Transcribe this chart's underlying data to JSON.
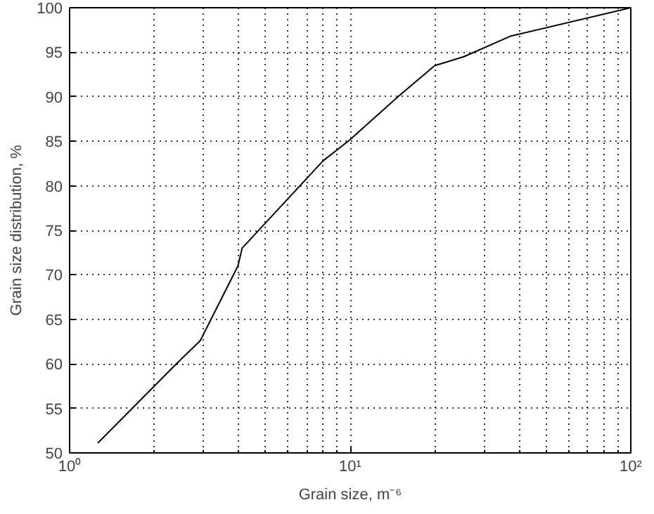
{
  "chart_data": {
    "type": "line",
    "xlabel": "Grain size, m⁻⁶",
    "ylabel": "Grain size distribution, %",
    "log": "x",
    "grid": true,
    "marker": "none",
    "line_style": "solid",
    "x": [
      1.26,
      2.4,
      2.92,
      3.98,
      4.12,
      8.0,
      10,
      14.8,
      20,
      25.4,
      37.2,
      100
    ],
    "series": [
      {
        "color": "#000000",
        "values": [
          51.1,
          60,
          62.6,
          71,
          73,
          82.8,
          85.2,
          90,
          93.5,
          94.5,
          96.8,
          100
        ]
      }
    ],
    "xlim": [
      1,
      100
    ],
    "xticks": [
      {
        "value": 1,
        "label": "10⁰"
      },
      {
        "value": 10,
        "label": "10¹"
      },
      {
        "value": 100,
        "label": "10²"
      }
    ],
    "ylim": [
      50,
      100
    ],
    "yticks": [
      50,
      55,
      60,
      65,
      70,
      75,
      80,
      85,
      90,
      95,
      100
    ]
  }
}
